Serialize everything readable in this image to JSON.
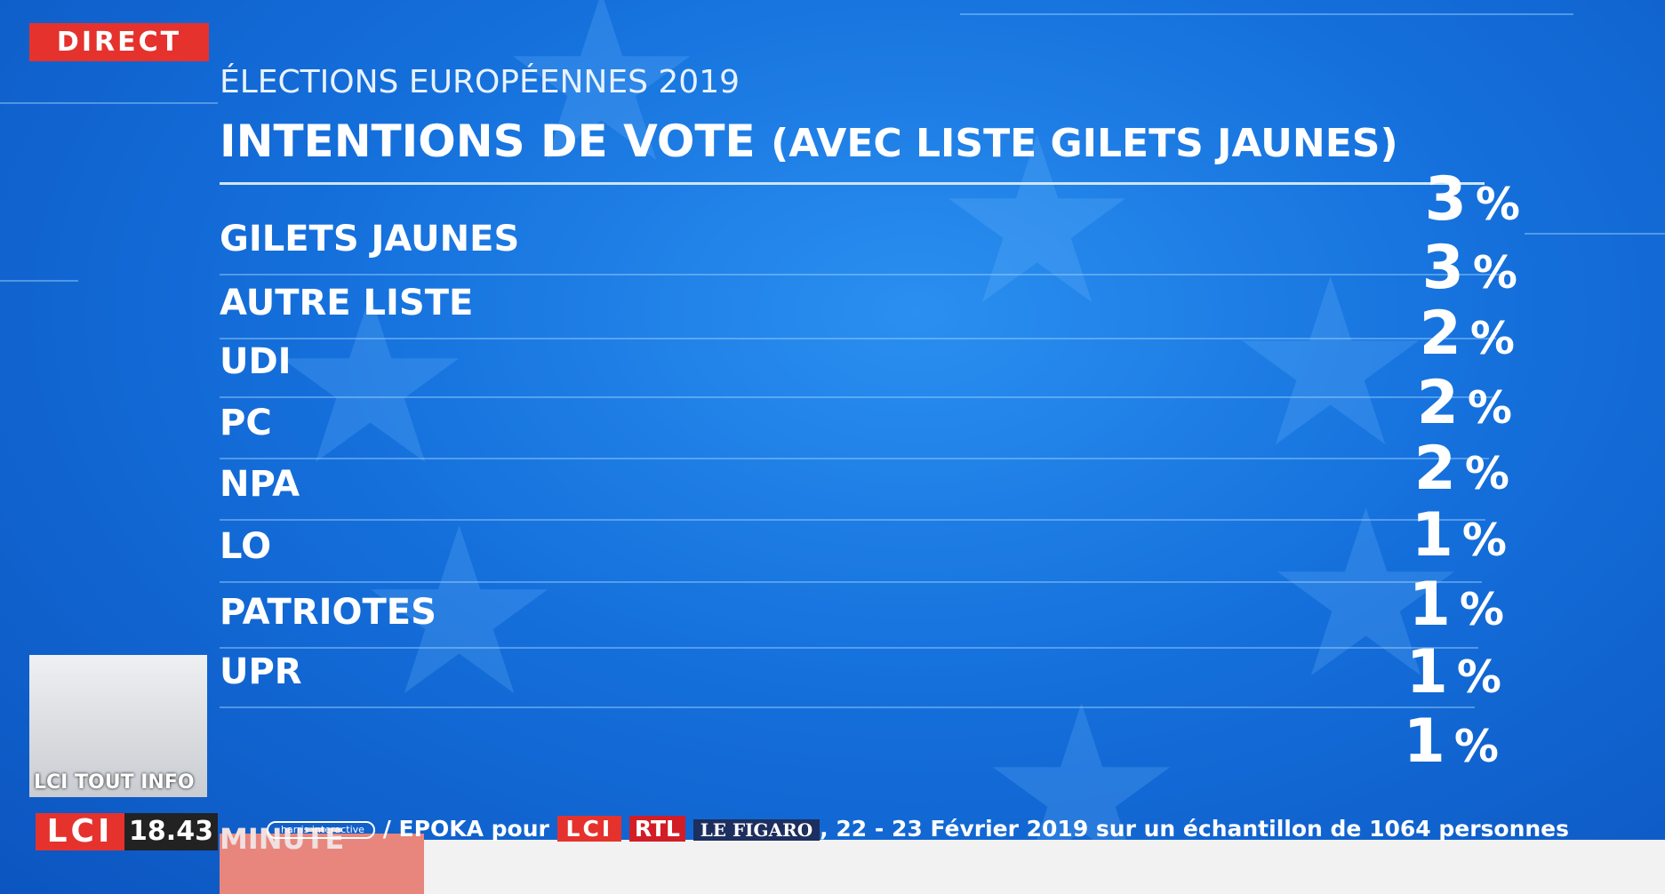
{
  "header": {
    "badge": "DIRECT",
    "subtitle": "ÉLECTIONS EUROPÉENNES 2019",
    "title": "INTENTIONS DE VOTE",
    "title_note": "(AVEC LISTE GILETS JAUNES)"
  },
  "unit": "%",
  "rows": [
    {
      "label": "GILETS JAUNES",
      "value": 3
    },
    {
      "label": "AUTRE LISTE",
      "value": 3
    },
    {
      "label": "UDI",
      "value": 2
    },
    {
      "label": "PC",
      "value": 2
    },
    {
      "label": "NPA",
      "value": 2
    },
    {
      "label": "LO",
      "value": 1
    },
    {
      "label": "PATRIOTES",
      "value": 1
    },
    {
      "label": "UPR",
      "value": 1
    },
    {
      "label": null,
      "value": 1
    }
  ],
  "source": {
    "pollster": "harris interactive",
    "partner": "/ EPOKA pour",
    "media1": "LCI",
    "media2": "RTL",
    "media3": "LE FIGARO",
    "details": ", 22 - 23 Février 2019 sur un échantillon de 1064 personnes"
  },
  "broadcast": {
    "thumbnail": "LCI TOUT INFO",
    "channel": "LCI",
    "time": "18.43",
    "ticker": "MINUTE"
  }
}
